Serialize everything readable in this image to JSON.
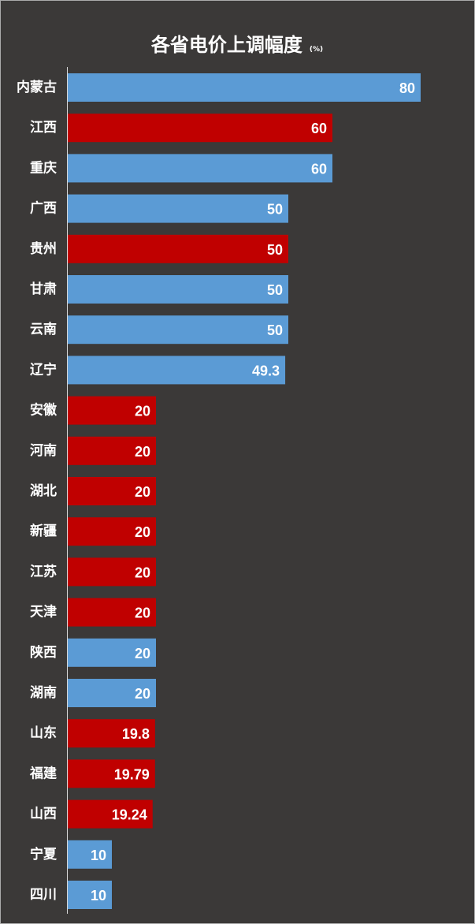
{
  "colors": {
    "background": "#3b3938",
    "blue": "#5b9bd5",
    "red": "#c00000",
    "text": "#ffffff",
    "axis": "#d9d9d9"
  },
  "chart_data": {
    "type": "bar",
    "orientation": "horizontal",
    "title": "各省电价上调幅度",
    "unit": "(%)",
    "categories": [
      "内蒙古",
      "江西",
      "重庆",
      "广西",
      "贵州",
      "甘肃",
      "云南",
      "辽宁",
      "安徽",
      "河南",
      "湖北",
      "新疆",
      "江苏",
      "天津",
      "陕西",
      "湖南",
      "山东",
      "福建",
      "山西",
      "宁夏",
      "四川"
    ],
    "values": [
      80,
      60,
      60,
      50,
      50,
      50,
      50,
      49.3,
      20,
      20,
      20,
      20,
      20,
      20,
      20,
      20,
      19.8,
      19.79,
      19.24,
      10,
      10
    ],
    "value_labels": [
      "80",
      "60",
      "60",
      "50",
      "50",
      "50",
      "50",
      "49.3",
      "20",
      "20",
      "20",
      "20",
      "20",
      "20",
      "20",
      "20",
      "19.8",
      "19.79",
      "19.24",
      "10",
      "10"
    ],
    "bar_colors": [
      "blue",
      "red",
      "blue",
      "blue",
      "red",
      "blue",
      "blue",
      "blue",
      "red",
      "red",
      "red",
      "red",
      "red",
      "red",
      "blue",
      "blue",
      "red",
      "red",
      "red",
      "blue",
      "blue"
    ],
    "xlim": [
      0,
      80
    ],
    "grid": false,
    "legend": "none"
  }
}
